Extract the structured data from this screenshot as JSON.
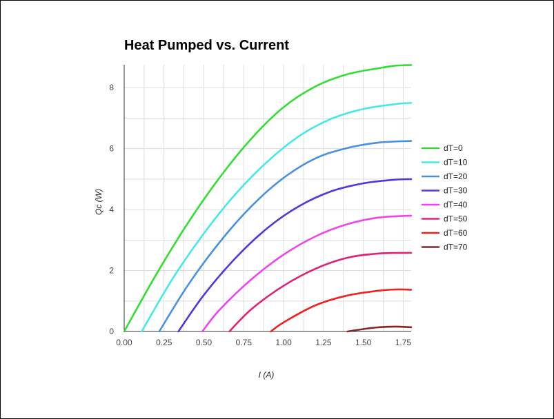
{
  "chart_data": {
    "type": "line",
    "title": "Heat Pumped vs. Current",
    "xlabel": "I (A)",
    "ylabel": "Qc (W)",
    "xlim": [
      0,
      1.8
    ],
    "ylim": [
      0,
      8.75
    ],
    "x_ticks": [
      "0.00",
      "0.25",
      "0.50",
      "0.75",
      "1.00",
      "1.25",
      "1.50",
      "1.75"
    ],
    "x_tick_values": [
      0,
      0.25,
      0.5,
      0.75,
      1.0,
      1.25,
      1.5,
      1.75
    ],
    "y_ticks": [
      "0",
      "2",
      "4",
      "6",
      "8"
    ],
    "y_tick_values": [
      0,
      2,
      4,
      6,
      8
    ],
    "grid": true,
    "legend_position": "right",
    "series": [
      {
        "name": "dT=0",
        "color": "#33dd33",
        "x": [
          0,
          0.2,
          0.4,
          0.6,
          0.8,
          1.0,
          1.2,
          1.4,
          1.6,
          1.7,
          1.8
        ],
        "y": [
          0,
          1.86,
          3.56,
          5.06,
          6.34,
          7.36,
          8.04,
          8.44,
          8.64,
          8.72,
          8.74
        ]
      },
      {
        "name": "dT=10",
        "color": "#44e8e8",
        "x": [
          0.11,
          0.3,
          0.5,
          0.7,
          0.9,
          1.1,
          1.3,
          1.5,
          1.7,
          1.8
        ],
        "y": [
          0,
          1.7,
          3.22,
          4.52,
          5.58,
          6.42,
          6.98,
          7.3,
          7.46,
          7.5
        ]
      },
      {
        "name": "dT=20",
        "color": "#4a90e2",
        "x": [
          0.22,
          0.4,
          0.6,
          0.8,
          1.0,
          1.2,
          1.4,
          1.6,
          1.8
        ],
        "y": [
          0,
          1.52,
          2.94,
          4.12,
          5.04,
          5.68,
          6.02,
          6.2,
          6.25
        ]
      },
      {
        "name": "dT=30",
        "color": "#5533dd",
        "x": [
          0.34,
          0.5,
          0.7,
          0.9,
          1.1,
          1.3,
          1.5,
          1.7,
          1.8
        ],
        "y": [
          0,
          1.2,
          2.42,
          3.4,
          4.12,
          4.6,
          4.86,
          4.98,
          5.0
        ]
      },
      {
        "name": "dT=40",
        "color": "#ee44ee",
        "x": [
          0.49,
          0.6,
          0.8,
          1.0,
          1.2,
          1.4,
          1.6,
          1.8
        ],
        "y": [
          0,
          0.72,
          1.72,
          2.52,
          3.12,
          3.52,
          3.74,
          3.8
        ]
      },
      {
        "name": "dT=50",
        "color": "#dd2277",
        "x": [
          0.66,
          0.8,
          1.0,
          1.2,
          1.4,
          1.6,
          1.8
        ],
        "y": [
          0,
          0.74,
          1.5,
          2.06,
          2.42,
          2.56,
          2.58
        ]
      },
      {
        "name": "dT=60",
        "color": "#ee2222",
        "x": [
          0.92,
          1.0,
          1.2,
          1.4,
          1.6,
          1.7,
          1.8
        ],
        "y": [
          0,
          0.3,
          0.86,
          1.18,
          1.34,
          1.38,
          1.37
        ]
      },
      {
        "name": "dT=70",
        "color": "#8b2525",
        "x": [
          1.4,
          1.5,
          1.6,
          1.7,
          1.8
        ],
        "y": [
          0,
          0.08,
          0.14,
          0.16,
          0.14
        ]
      }
    ]
  }
}
